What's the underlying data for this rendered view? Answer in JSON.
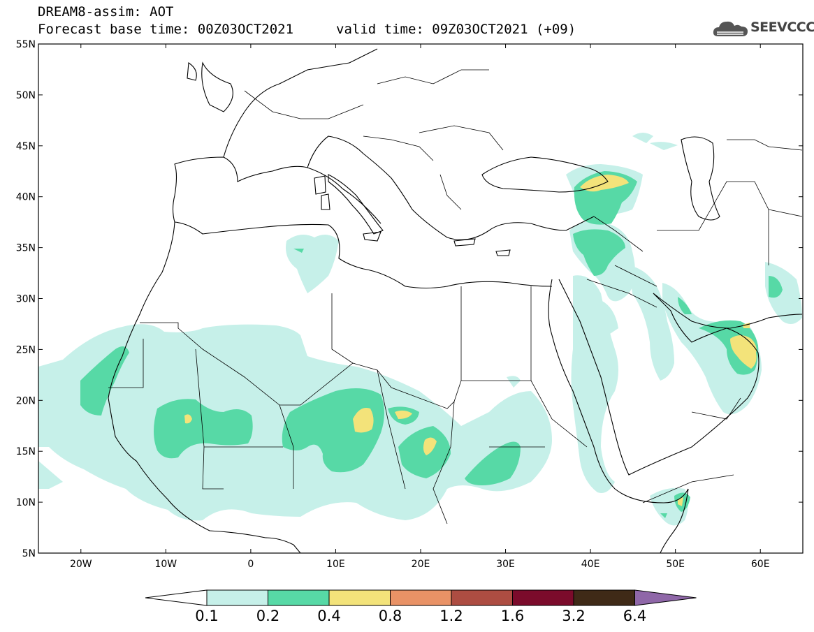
{
  "header": {
    "line1": "DREAM8-assim: AOT",
    "line2": "Forecast base time: 00Z03OCT2021",
    "line2b": "valid time: 09Z03OCT2021 (+09)",
    "logo_text": "SEEVCCC"
  },
  "map": {
    "lat_range": [
      5,
      55
    ],
    "lon_range": [
      -25,
      65
    ],
    "lat_labels": [
      "55N",
      "50N",
      "45N",
      "40N",
      "35N",
      "30N",
      "25N",
      "20N",
      "15N",
      "10N",
      "5N"
    ],
    "lat_values": [
      55,
      50,
      45,
      40,
      35,
      30,
      25,
      20,
      15,
      10,
      5
    ],
    "lon_labels": [
      "20W",
      "10W",
      "0",
      "10E",
      "20E",
      "30E",
      "40E",
      "50E",
      "60E"
    ],
    "lon_values": [
      -20,
      -10,
      0,
      10,
      20,
      30,
      40,
      50,
      60
    ]
  },
  "colorbar": {
    "labels": [
      "0.1",
      "0.2",
      "0.4",
      "0.8",
      "1.2",
      "1.6",
      "3.2",
      "6.4"
    ],
    "colors": [
      "#c6f0e9",
      "#57d9a6",
      "#f3e37a",
      "#e99266",
      "#ad4d42",
      "#7b0b2b",
      "#3f2a17"
    ],
    "overflow_color": "#8f67a8",
    "underflow_color": "#ffffff"
  }
}
